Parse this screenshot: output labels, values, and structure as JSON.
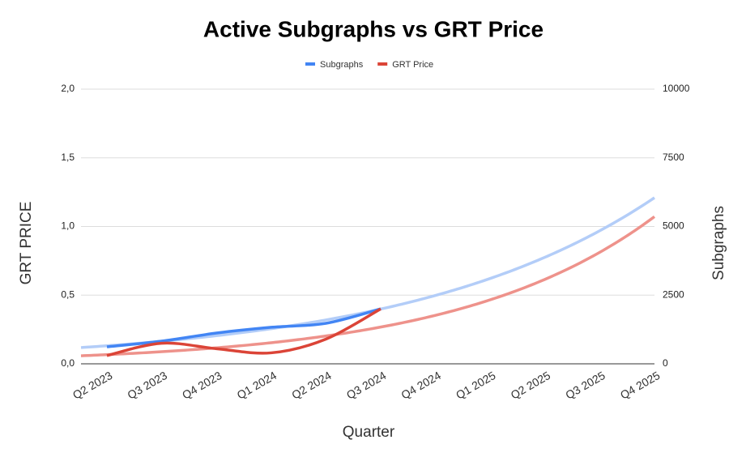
{
  "chart_data": {
    "type": "line",
    "title": "Active Subgraphs vs GRT Price",
    "xlabel": "Quarter",
    "ylabel": "GRT PRICE",
    "y2label": "Subgraphs",
    "categories": [
      "Q2 2023",
      "Q3 2023",
      "Q4 2023",
      "Q1 2024",
      "Q2 2024",
      "Q3 2024",
      "Q4 2024",
      "Q1 2025",
      "Q2 2025",
      "Q3 2025",
      "Q4 2025"
    ],
    "series": [
      {
        "name": "Subgraphs",
        "color": "#4285f4",
        "axis": "y2",
        "trendline": "exponential",
        "trend_color": "#b3cdf8",
        "values": [
          620,
          826,
          1120,
          1330,
          1475,
          2000,
          null,
          null,
          null,
          null,
          null
        ]
      },
      {
        "name": "GRT Price",
        "color": "#db4437",
        "axis": "y",
        "trendline": "exponential",
        "trend_color": "#ee928b",
        "values": [
          0.06,
          0.15,
          0.11,
          0.08,
          0.18,
          0.4,
          null,
          null,
          null,
          null,
          null
        ]
      }
    ],
    "ylim": [
      0,
      2
    ],
    "yticks": [
      {
        "value": 0,
        "label": "0,0"
      },
      {
        "value": 0.5,
        "label": "0,5"
      },
      {
        "value": 1,
        "label": "1,0"
      },
      {
        "value": 1.5,
        "label": "1,5"
      },
      {
        "value": 2,
        "label": "2,0"
      }
    ],
    "y2lim": [
      0,
      10000
    ],
    "y2ticks": [
      0,
      2500,
      5000,
      7500,
      10000
    ],
    "grid": true,
    "legend": "top"
  }
}
